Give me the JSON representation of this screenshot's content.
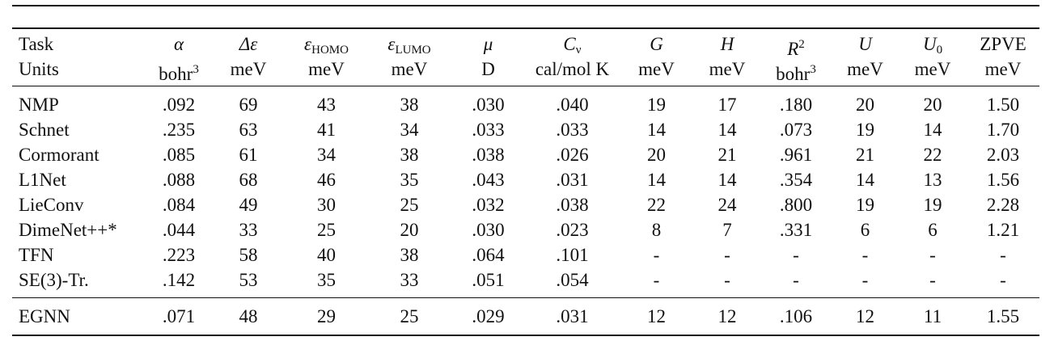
{
  "table": {
    "columns": [
      {
        "symbol": "Task",
        "unit": "Units"
      },
      {
        "symbol": "α",
        "unit": "bohr",
        "unit_sup": "3"
      },
      {
        "symbol": "Δε",
        "unit": "meV"
      },
      {
        "symbol": "ε",
        "sub": "HOMO",
        "unit": "meV"
      },
      {
        "symbol": "ε",
        "sub": "LUMO",
        "unit": "meV"
      },
      {
        "symbol": "μ",
        "unit": "D"
      },
      {
        "symbol": "C",
        "sub": "ν",
        "unit": "cal/mol K"
      },
      {
        "symbol": "G",
        "unit": "meV"
      },
      {
        "symbol": "H",
        "unit": "meV"
      },
      {
        "symbol": "R",
        "sup": "2",
        "unit": "bohr",
        "unit_sup": "3"
      },
      {
        "symbol": "U",
        "unit": "meV"
      },
      {
        "symbol": "U",
        "sub": "0",
        "unit": "meV"
      },
      {
        "symbol": "ZPVE",
        "unit": "meV"
      }
    ],
    "rows": [
      [
        "NMP",
        ".092",
        "69",
        "43",
        "38",
        ".030",
        ".040",
        "19",
        "17",
        ".180",
        "20",
        "20",
        "1.50"
      ],
      [
        "Schnet",
        ".235",
        "63",
        "41",
        "34",
        ".033",
        ".033",
        "14",
        "14",
        ".073",
        "19",
        "14",
        "1.70"
      ],
      [
        "Cormorant",
        ".085",
        "61",
        "34",
        "38",
        ".038",
        ".026",
        "20",
        "21",
        ".961",
        "21",
        "22",
        "2.03"
      ],
      [
        "L1Net",
        ".088",
        "68",
        "46",
        "35",
        ".043",
        ".031",
        "14",
        "14",
        ".354",
        "14",
        "13",
        "1.56"
      ],
      [
        "LieConv",
        ".084",
        "49",
        "30",
        "25",
        ".032",
        ".038",
        "22",
        "24",
        ".800",
        "19",
        "19",
        "2.28"
      ],
      [
        "DimeNet++*",
        ".044",
        "33",
        "25",
        "20",
        ".030",
        ".023",
        "8",
        "7",
        ".331",
        "6",
        "6",
        "1.21"
      ],
      [
        "TFN",
        ".223",
        "58",
        "40",
        "38",
        ".064",
        ".101",
        "-",
        "-",
        "-",
        "-",
        "-",
        "-"
      ],
      [
        "SE(3)-Tr.",
        ".142",
        "53",
        "35",
        "33",
        ".051",
        ".054",
        "-",
        "-",
        "-",
        "-",
        "-",
        "-"
      ]
    ],
    "final_row": [
      "EGNN",
      ".071",
      "48",
      "29",
      "25",
      ".029",
      ".031",
      "12",
      "12",
      ".106",
      "12",
      "11",
      "1.55"
    ]
  }
}
